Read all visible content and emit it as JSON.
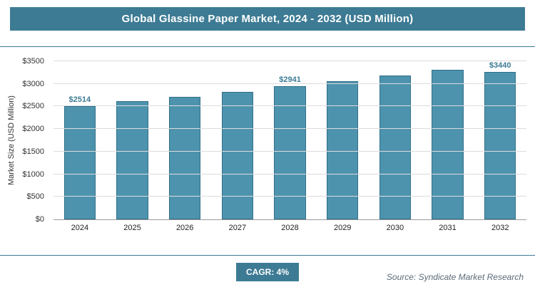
{
  "header": {
    "title": "Global Glassine Paper Market, 2024 - 2032 (USD Million)"
  },
  "chart_data": {
    "type": "bar",
    "title": "Global Glassine Paper Market, 2024 - 2032 (USD Million)",
    "categories": [
      "2024",
      "2025",
      "2026",
      "2027",
      "2028",
      "2029",
      "2030",
      "2031",
      "2032"
    ],
    "values": [
      2514,
      2615,
      2719,
      2828,
      2941,
      3059,
      3181,
      3308,
      3440
    ],
    "data_labels": [
      "$2514",
      "",
      "",
      "",
      "$2941",
      "",
      "",
      "",
      "$3440"
    ],
    "xlabel": "",
    "ylabel": "Market Size (USD Million)",
    "ylim": [
      0,
      3500
    ],
    "ytick_step": 500,
    "ytick_labels": [
      "$0",
      "$500",
      "$1000",
      "$1500",
      "$2000",
      "$2500",
      "$3000",
      "$3500"
    ],
    "grid": true,
    "legend": "none"
  },
  "footer": {
    "cagr_label": "CAGR: 4%",
    "source": "Source: Syndicate Market Research"
  },
  "colors": {
    "accent": "#3d7b94",
    "bar_fill": "#4e93ad",
    "bar_border": "#2f7089",
    "gridline": "#dcdcdc",
    "axis_line": "#9a9a9a"
  }
}
